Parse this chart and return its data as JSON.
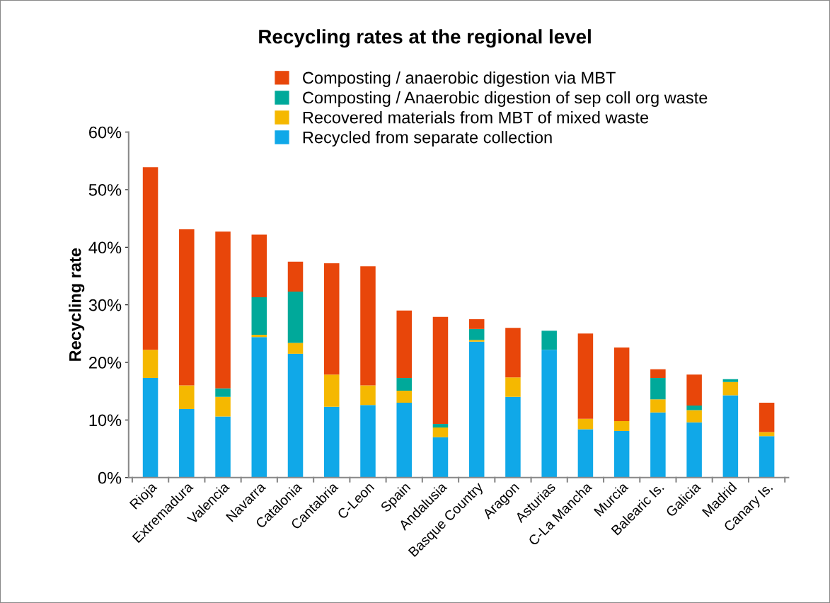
{
  "chart_data": {
    "type": "bar",
    "stacked": true,
    "title": "Recycling rates at the regional level",
    "ylabel": "Recycling rate",
    "categories": [
      "Rioja",
      "Extremadura",
      "Valencia",
      "Navarra",
      "Catalonia",
      "Cantabria",
      "C-Leon",
      "Spain",
      "Andalusia",
      "Basque Country",
      "Aragon",
      "Asturias",
      "C-La Mancha",
      "Murcia",
      "Balearic Is.",
      "Galicia",
      "Madrid",
      "Canary Is."
    ],
    "series": [
      {
        "name": "Recycled from separate collection",
        "color": "#10a8e8",
        "values": [
          17.3,
          11.9,
          10.6,
          24.4,
          21.5,
          12.3,
          12.6,
          13.0,
          7.0,
          23.6,
          14.0,
          22.2,
          8.4,
          8.1,
          11.3,
          9.6,
          14.3,
          7.2
        ]
      },
      {
        "name": "Recovered materials from MBT of mixed waste",
        "color": "#f5b800",
        "values": [
          4.9,
          4.1,
          3.4,
          0.4,
          1.9,
          5.6,
          3.4,
          2.1,
          1.7,
          0.3,
          3.4,
          0,
          1.8,
          1.7,
          2.3,
          2.1,
          2.3,
          0.7
        ]
      },
      {
        "name": "Composting / Anaerobic digestion of sep coll org waste",
        "color": "#00a99a",
        "values": [
          0,
          0,
          1.5,
          6.5,
          8.9,
          0,
          0,
          2.2,
          0.6,
          1.9,
          0,
          3.3,
          0,
          0,
          3.7,
          0.8,
          0.5,
          0
        ]
      },
      {
        "name": "Composting / anaerobic digestion via MBT",
        "color": "#e8460a",
        "values": [
          31.7,
          27.1,
          27.2,
          10.9,
          5.2,
          19.3,
          20.7,
          11.7,
          18.6,
          1.7,
          8.6,
          0,
          14.8,
          12.8,
          1.5,
          5.4,
          0,
          5.1
        ]
      }
    ],
    "ylim": [
      0,
      60
    ],
    "yticks": [
      {
        "value": 0,
        "label": "0%"
      },
      {
        "value": 10,
        "label": "10%"
      },
      {
        "value": 20,
        "label": "20%"
      },
      {
        "value": 30,
        "label": "30%"
      },
      {
        "value": 40,
        "label": "40%"
      },
      {
        "value": 50,
        "label": "50%"
      },
      {
        "value": 60,
        "label": "60%"
      }
    ],
    "grid": false,
    "legend": "top"
  }
}
